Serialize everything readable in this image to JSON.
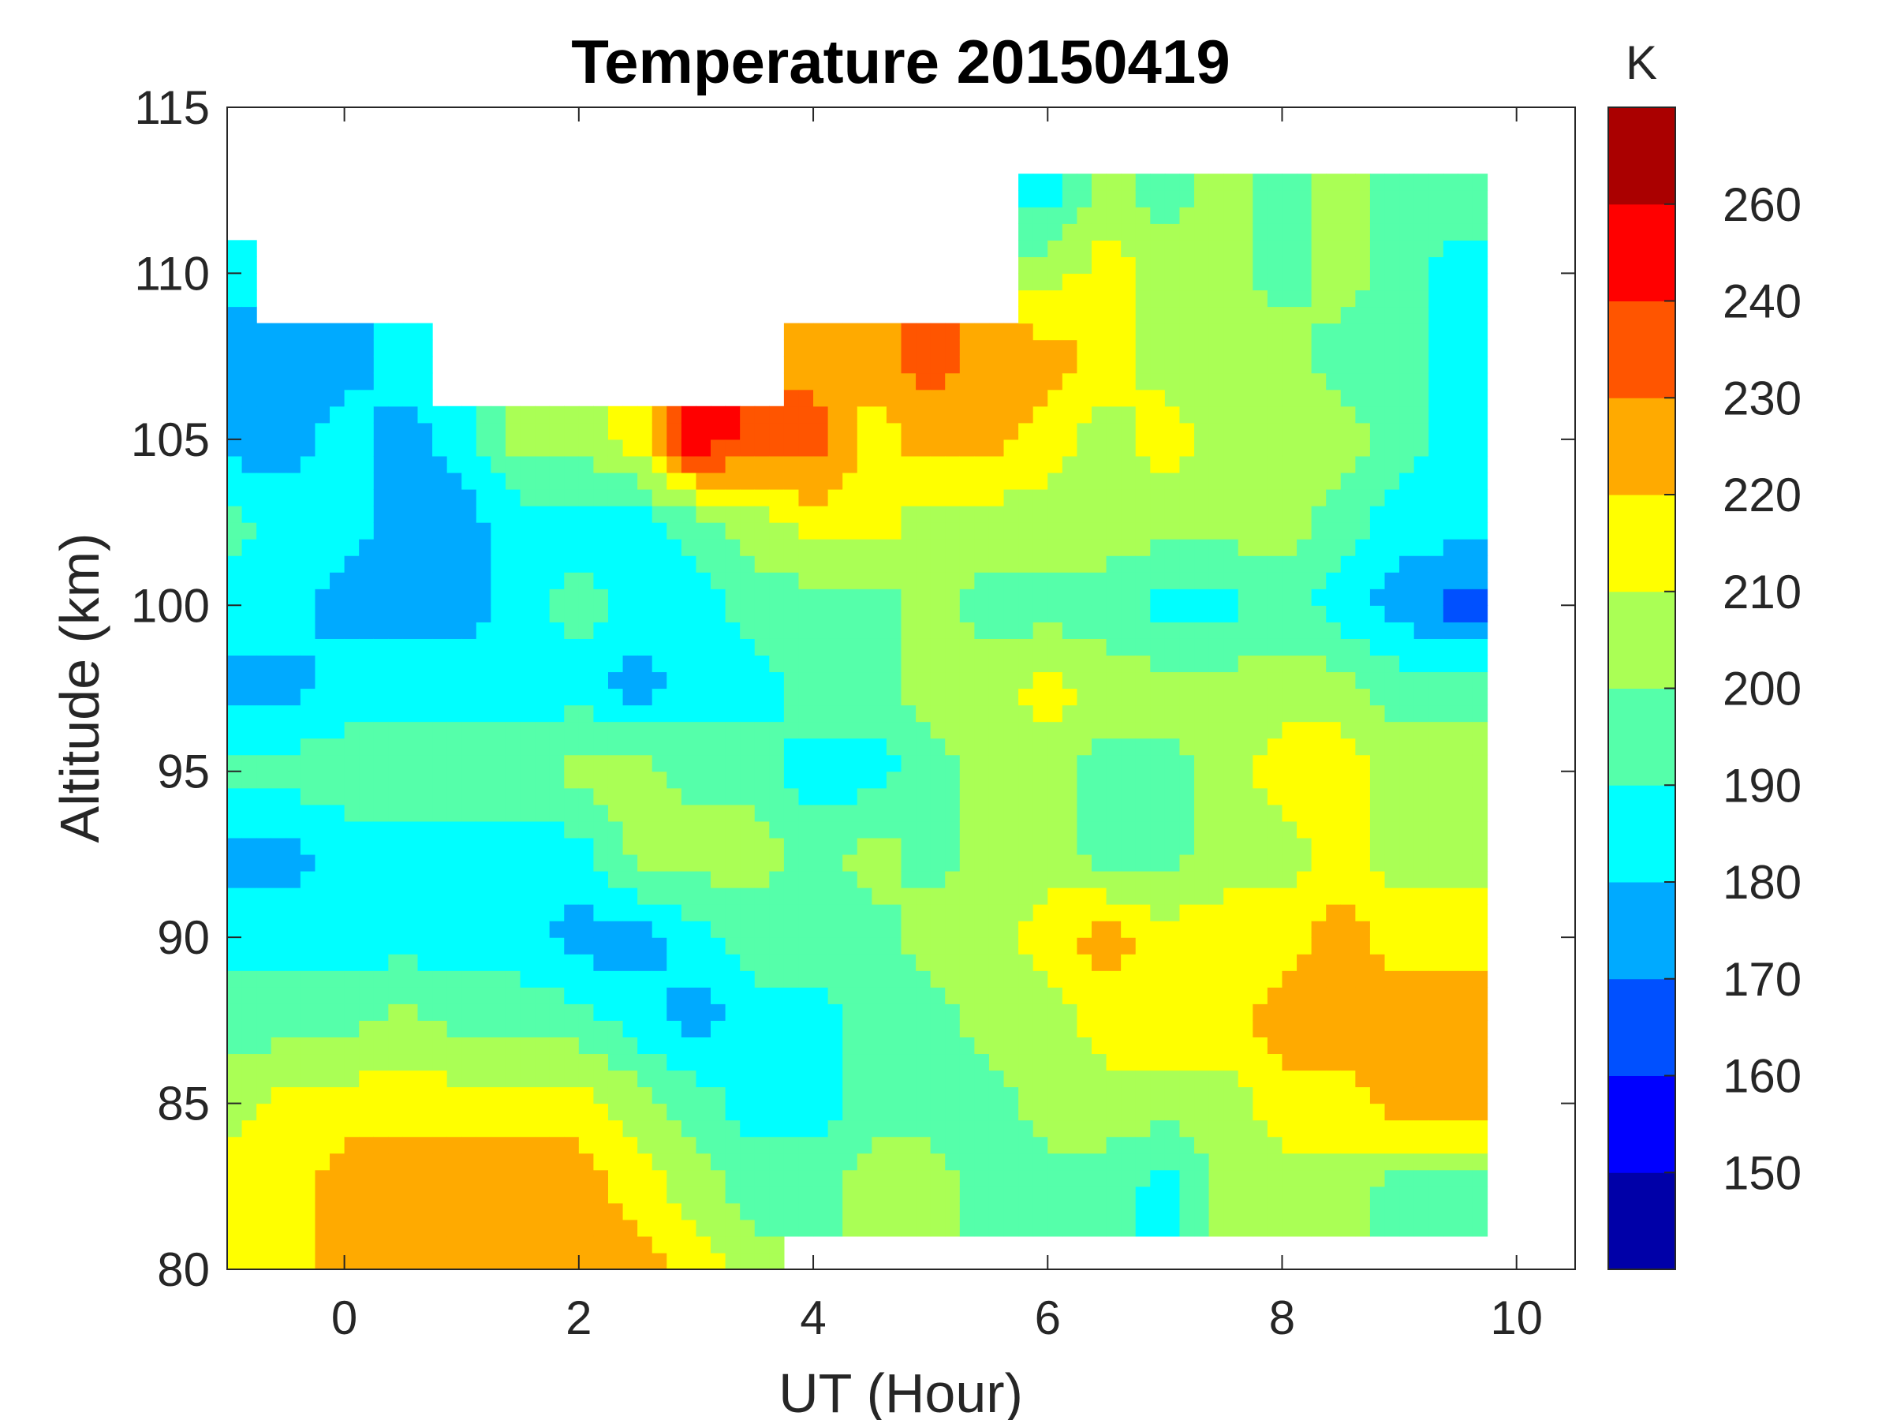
{
  "chart_data": {
    "type": "heatmap",
    "subtype": "filled-contour",
    "title": "Temperature 20150419",
    "xlabel": "UT (Hour)",
    "ylabel": "Altitude (km)",
    "xlim": [
      -1,
      10.5
    ],
    "ylim": [
      80,
      115
    ],
    "xticks": [
      0,
      2,
      4,
      6,
      8,
      10
    ],
    "yticks": [
      80,
      85,
      90,
      95,
      100,
      105,
      110,
      115
    ],
    "grid": false,
    "colorbar": {
      "label": "K",
      "levels": [
        150,
        160,
        170,
        180,
        190,
        200,
        210,
        220,
        230,
        240,
        260
      ],
      "tick_labels": [
        "150",
        "160",
        "170",
        "180",
        "190",
        "200",
        "210",
        "220",
        "230",
        "240",
        "260"
      ],
      "colors": [
        "#0000A8",
        "#0000FF",
        "#0050FF",
        "#00AAFF",
        "#00FFFF",
        "#55FFAA",
        "#AAFF55",
        "#FFFF00",
        "#FFAA00",
        "#FF5500",
        "#FF0000",
        "#AA0000"
      ],
      "placement": "right"
    },
    "x": [
      -1,
      -0.5,
      0,
      0.5,
      1,
      1.5,
      2,
      2.5,
      3,
      3.5,
      4,
      4.5,
      5,
      5.5,
      6,
      6.5,
      7,
      7.5,
      8,
      8.5,
      9,
      9.5
    ],
    "altitudes": [
      80,
      82.5,
      85,
      87.5,
      90,
      92.5,
      95,
      97.5,
      100,
      102.5,
      105,
      107.5,
      110,
      112.5
    ],
    "temperature_K": [
      [
        215,
        215,
        225,
        225,
        225,
        225,
        225,
        225,
        215,
        205,
        null,
        null,
        null,
        null,
        null,
        null,
        null,
        null,
        null,
        null,
        null,
        null
      ],
      [
        215,
        215,
        225,
        225,
        225,
        225,
        225,
        215,
        205,
        195,
        195,
        205,
        205,
        195,
        195,
        195,
        185,
        205,
        205,
        205,
        195,
        195
      ],
      [
        205,
        215,
        215,
        215,
        215,
        215,
        215,
        205,
        195,
        185,
        185,
        195,
        195,
        195,
        205,
        205,
        205,
        205,
        215,
        215,
        225,
        225
      ],
      [
        195,
        195,
        195,
        205,
        195,
        195,
        195,
        185,
        175,
        185,
        185,
        195,
        195,
        205,
        205,
        215,
        215,
        215,
        225,
        225,
        225,
        225
      ],
      [
        185,
        185,
        185,
        185,
        185,
        185,
        175,
        175,
        185,
        195,
        195,
        195,
        205,
        205,
        215,
        225,
        215,
        215,
        215,
        225,
        215,
        215
      ],
      [
        175,
        175,
        185,
        185,
        185,
        185,
        185,
        205,
        205,
        205,
        195,
        205,
        195,
        205,
        205,
        195,
        195,
        205,
        205,
        215,
        205,
        205
      ],
      [
        195,
        195,
        195,
        195,
        195,
        195,
        205,
        205,
        195,
        195,
        185,
        185,
        195,
        205,
        205,
        195,
        195,
        205,
        215,
        215,
        205,
        205
      ],
      [
        175,
        175,
        185,
        185,
        185,
        185,
        185,
        175,
        185,
        185,
        195,
        195,
        205,
        205,
        215,
        205,
        205,
        205,
        205,
        205,
        195,
        195
      ],
      [
        185,
        185,
        175,
        175,
        175,
        185,
        195,
        185,
        185,
        195,
        195,
        195,
        205,
        195,
        195,
        195,
        185,
        185,
        195,
        185,
        175,
        165
      ],
      [
        195,
        185,
        185,
        175,
        175,
        185,
        185,
        185,
        195,
        205,
        215,
        215,
        205,
        205,
        205,
        205,
        205,
        205,
        205,
        195,
        185,
        185
      ],
      [
        175,
        175,
        185,
        175,
        185,
        205,
        205,
        215,
        250,
        235,
        235,
        215,
        225,
        225,
        215,
        205,
        215,
        205,
        205,
        205,
        195,
        185
      ],
      [
        175,
        175,
        175,
        185,
        null,
        null,
        null,
        null,
        null,
        null,
        225,
        225,
        235,
        225,
        225,
        215,
        205,
        205,
        205,
        195,
        195,
        185
      ],
      [
        185,
        null,
        null,
        null,
        null,
        null,
        null,
        null,
        null,
        null,
        null,
        null,
        null,
        null,
        205,
        215,
        205,
        205,
        195,
        205,
        195,
        185
      ],
      [
        null,
        null,
        null,
        null,
        null,
        null,
        null,
        null,
        null,
        null,
        null,
        null,
        null,
        null,
        185,
        205,
        195,
        205,
        195,
        205,
        195,
        195
      ]
    ]
  }
}
